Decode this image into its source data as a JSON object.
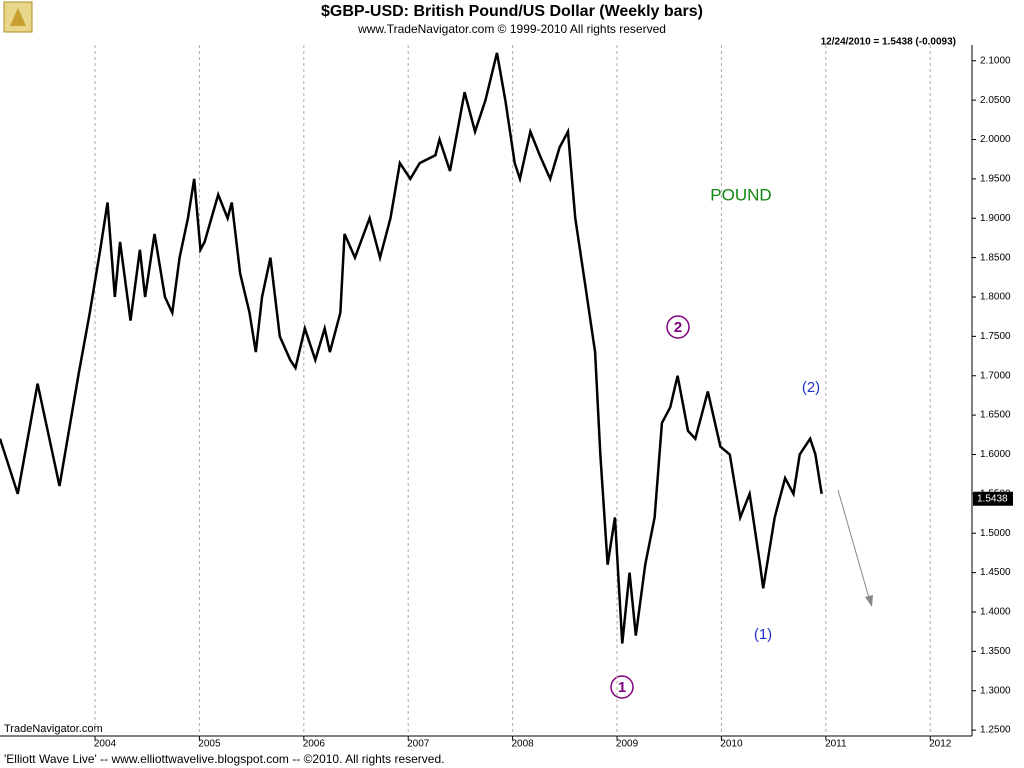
{
  "chart_data": {
    "type": "line",
    "title": "$GBP-USD:  British Pound/US Dollar  (Weekly bars)",
    "subtitle": "www.TradeNavigator.com © 1999-2010 All rights reserved",
    "last_info": "12/24/2010 = 1.5438 (-0.0093)",
    "last_value": {
      "value": 1.5438,
      "label": "1.5438"
    },
    "annotations": [
      "POUND",
      "1",
      "2",
      "(1)",
      "(2)"
    ],
    "source": "TradeNavigator.com",
    "footer": "'Elliott Wave Live' -- www.elliottwavelive.blogspot.com -- ©2010. All rights reserved.",
    "color": "#000000",
    "grid": true,
    "x": [
      2003.09,
      2003.26,
      2003.45,
      2003.66,
      2003.84,
      2003.95,
      2004.05,
      2004.12,
      2004.19,
      2004.24,
      2004.34,
      2004.43,
      2004.48,
      2004.57,
      2004.67,
      2004.74,
      2004.81,
      2004.89,
      2004.95,
      2005.01,
      2005.05,
      2005.18,
      2005.27,
      2005.31,
      2005.39,
      2005.48,
      2005.54,
      2005.6,
      2005.68,
      2005.77,
      2005.87,
      2005.92,
      2006.01,
      2006.11,
      2006.2,
      2006.25,
      2006.35,
      2006.39,
      2006.49,
      2006.63,
      2006.73,
      2006.83,
      2006.92,
      2007.02,
      2007.11,
      2007.26,
      2007.3,
      2007.4,
      2007.54,
      2007.64,
      2007.74,
      2007.85,
      2007.93,
      2008.02,
      2008.07,
      2008.17,
      2008.26,
      2008.36,
      2008.45,
      2008.53,
      2008.6,
      2008.69,
      2008.79,
      2008.84,
      2008.91,
      2008.98,
      2009.05,
      2009.12,
      2009.18,
      2009.27,
      2009.36,
      2009.43,
      2009.51,
      2009.58,
      2009.68,
      2009.75,
      2009.87,
      2009.99,
      2010.08,
      2010.18,
      2010.27,
      2010.37,
      2010.4,
      2010.51,
      2010.61,
      2010.69,
      2010.75,
      2010.85,
      2010.9,
      2010.96
    ],
    "values": [
      1.62,
      1.55,
      1.69,
      1.56,
      1.7,
      1.78,
      1.86,
      1.92,
      1.8,
      1.87,
      1.77,
      1.86,
      1.8,
      1.88,
      1.8,
      1.78,
      1.85,
      1.9,
      1.95,
      1.86,
      1.87,
      1.93,
      1.9,
      1.92,
      1.83,
      1.78,
      1.73,
      1.8,
      1.85,
      1.75,
      1.72,
      1.71,
      1.76,
      1.72,
      1.76,
      1.73,
      1.78,
      1.88,
      1.85,
      1.9,
      1.85,
      1.9,
      1.97,
      1.95,
      1.97,
      1.98,
      2.0,
      1.96,
      2.06,
      2.01,
      2.05,
      2.11,
      2.05,
      1.97,
      1.95,
      2.01,
      1.98,
      1.95,
      1.99,
      2.01,
      1.9,
      1.82,
      1.73,
      1.6,
      1.46,
      1.52,
      1.36,
      1.45,
      1.37,
      1.46,
      1.52,
      1.64,
      1.66,
      1.7,
      1.63,
      1.62,
      1.68,
      1.61,
      1.6,
      1.52,
      1.55,
      1.46,
      1.43,
      1.52,
      1.57,
      1.55,
      1.6,
      1.62,
      1.6,
      1.55
    ],
    "xlim": [
      2003.09,
      2012.4
    ],
    "xticks": [
      2004,
      2005,
      2006,
      2007,
      2008,
      2009,
      2010,
      2011,
      2012
    ],
    "ylim": [
      1.2425,
      2.12
    ],
    "yticks": [
      {
        "value": 1.25,
        "label": "1.2500"
      },
      {
        "value": 1.3,
        "label": "1.3000"
      },
      {
        "value": 1.35,
        "label": "1.3500"
      },
      {
        "value": 1.4,
        "label": "1.4000"
      },
      {
        "value": 1.45,
        "label": "1.4500"
      },
      {
        "value": 1.5,
        "label": "1.5000"
      },
      {
        "value": 1.55,
        "label": "1.5500"
      },
      {
        "value": 1.6,
        "label": "1.6000"
      },
      {
        "value": 1.65,
        "label": "1.6500"
      },
      {
        "value": 1.7,
        "label": "1.7000"
      },
      {
        "value": 1.75,
        "label": "1.7500"
      },
      {
        "value": 1.8,
        "label": "1.8000"
      },
      {
        "value": 1.85,
        "label": "1.8500"
      },
      {
        "value": 1.9,
        "label": "1.9000"
      },
      {
        "value": 1.95,
        "label": "1.9500"
      },
      {
        "value": 2.0,
        "label": "2.0000"
      },
      {
        "value": 2.05,
        "label": "2.0500"
      },
      {
        "value": 2.1,
        "label": "2.1000"
      }
    ]
  }
}
